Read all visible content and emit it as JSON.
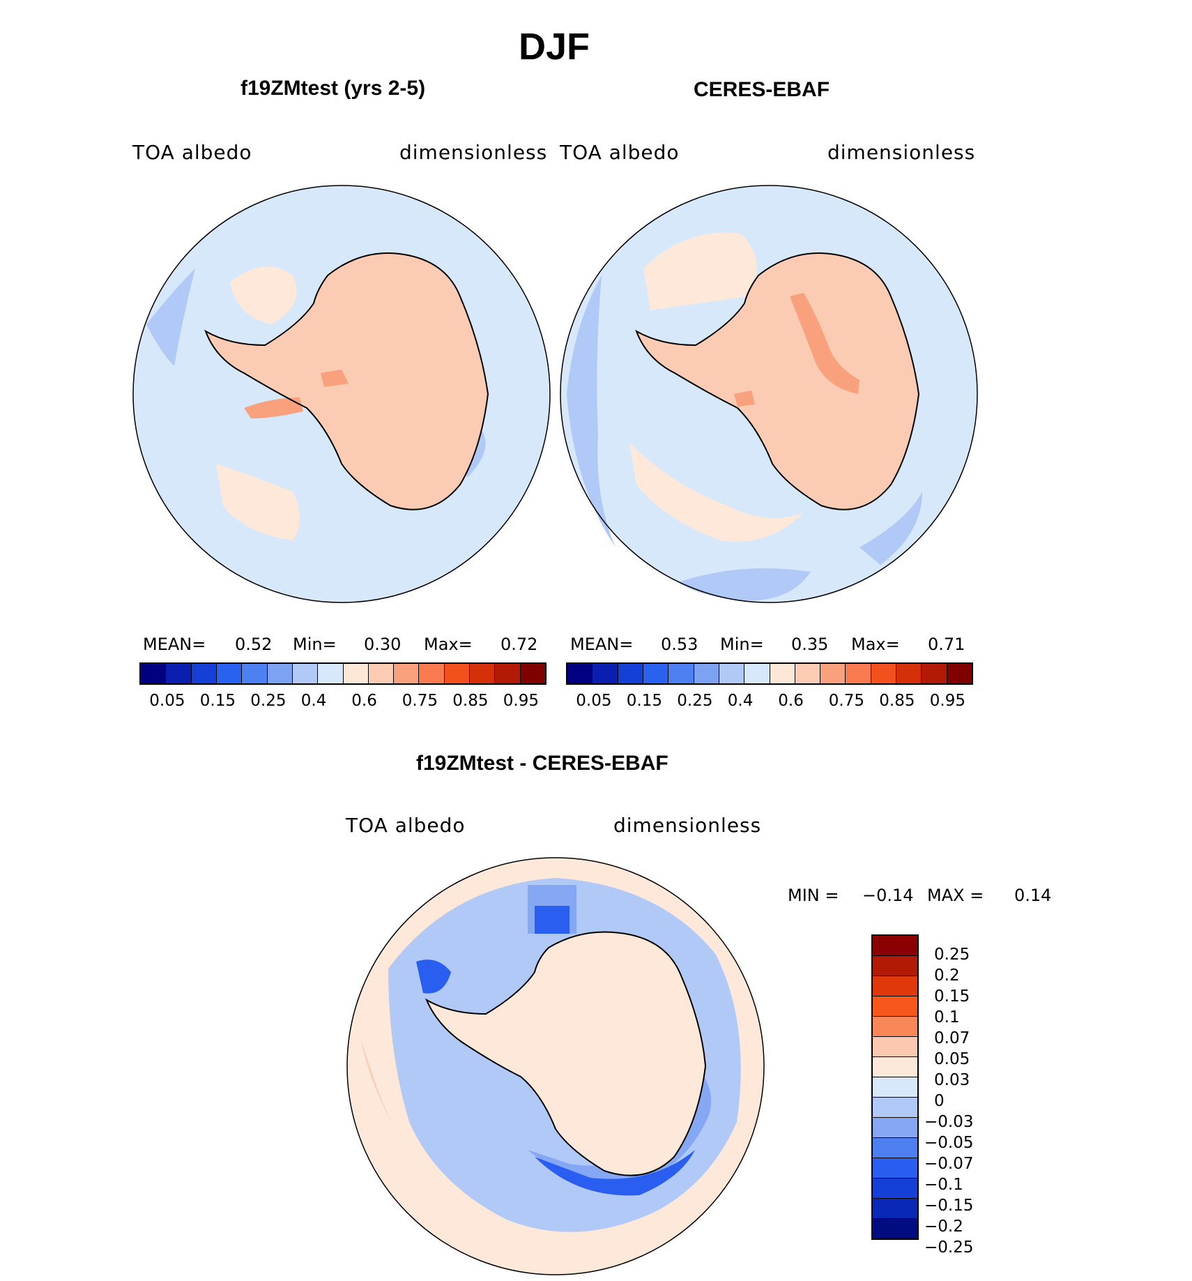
{
  "figure": {
    "season_title": "DJF"
  },
  "panels": [
    {
      "title": "f19ZMtest (yrs 2-5)",
      "variable": "TOA  albedo",
      "units": "dimensionless",
      "stats": {
        "mean_label": "MEAN=",
        "mean": "0.52",
        "min_label": "Min=",
        "min": "0.30",
        "max_label": "Max=",
        "max": "0.72"
      }
    },
    {
      "title": "CERES-EBAF",
      "variable": "TOA  albedo",
      "units": "dimensionless",
      "stats": {
        "mean_label": "MEAN=",
        "mean": "0.53",
        "min_label": "Min=",
        "min": "0.35",
        "max_label": "Max=",
        "max": "0.71"
      }
    }
  ],
  "abs_colorbar": {
    "colors": [
      "#000080",
      "#0a1fb0",
      "#1440d8",
      "#2a62f0",
      "#4d80f0",
      "#7ea2f2",
      "#b0c9f6",
      "#d8e8fb",
      "#fde8d8",
      "#fccbb4",
      "#f9a07c",
      "#f87a4e",
      "#f2501c",
      "#d6300a",
      "#b31a06",
      "#800000"
    ],
    "tick_labels": [
      "0.05",
      "0.15",
      "0.25",
      "0.4",
      "0.6",
      "0.75",
      "0.85",
      "0.95"
    ]
  },
  "difference_panel": {
    "title": "f19ZMtest - CERES-EBAF",
    "variable": "TOA  albedo",
    "units": "dimensionless",
    "min_label": "MIN =",
    "min": "−0.14",
    "max_label": "MAX =",
    "max": "0.14"
  },
  "diff_colorbar": {
    "colors": [
      "#8b0000",
      "#b31a06",
      "#e0380a",
      "#f8571c",
      "#f98858",
      "#fcc8b0",
      "#fde8da",
      "#d8e8fb",
      "#b0c9f6",
      "#86a8f4",
      "#4d7ff0",
      "#2a5ef0",
      "#1440d8",
      "#0a28b8",
      "#000c80"
    ],
    "tick_labels": [
      "0.25",
      "0.2",
      "0.15",
      "0.1",
      "0.07",
      "0.05",
      "0.03",
      "0",
      "−0.03",
      "−0.05",
      "−0.07",
      "−0.1",
      "−0.15",
      "−0.2",
      "−0.25"
    ]
  },
  "map_colors": {
    "ocean": "#d8e8fb",
    "ocean_low": "#b0c9f6",
    "land": "#fccbb4",
    "land_high": "#f9a07c",
    "ice_shelf": "#fde8da",
    "diff_pos": "#fde8da",
    "diff_pos_mid": "#fccbb4",
    "diff_neg": "#b0c9f6",
    "diff_neg_mid": "#86a8f4",
    "diff_neg_strong": "#2a5ef0"
  }
}
